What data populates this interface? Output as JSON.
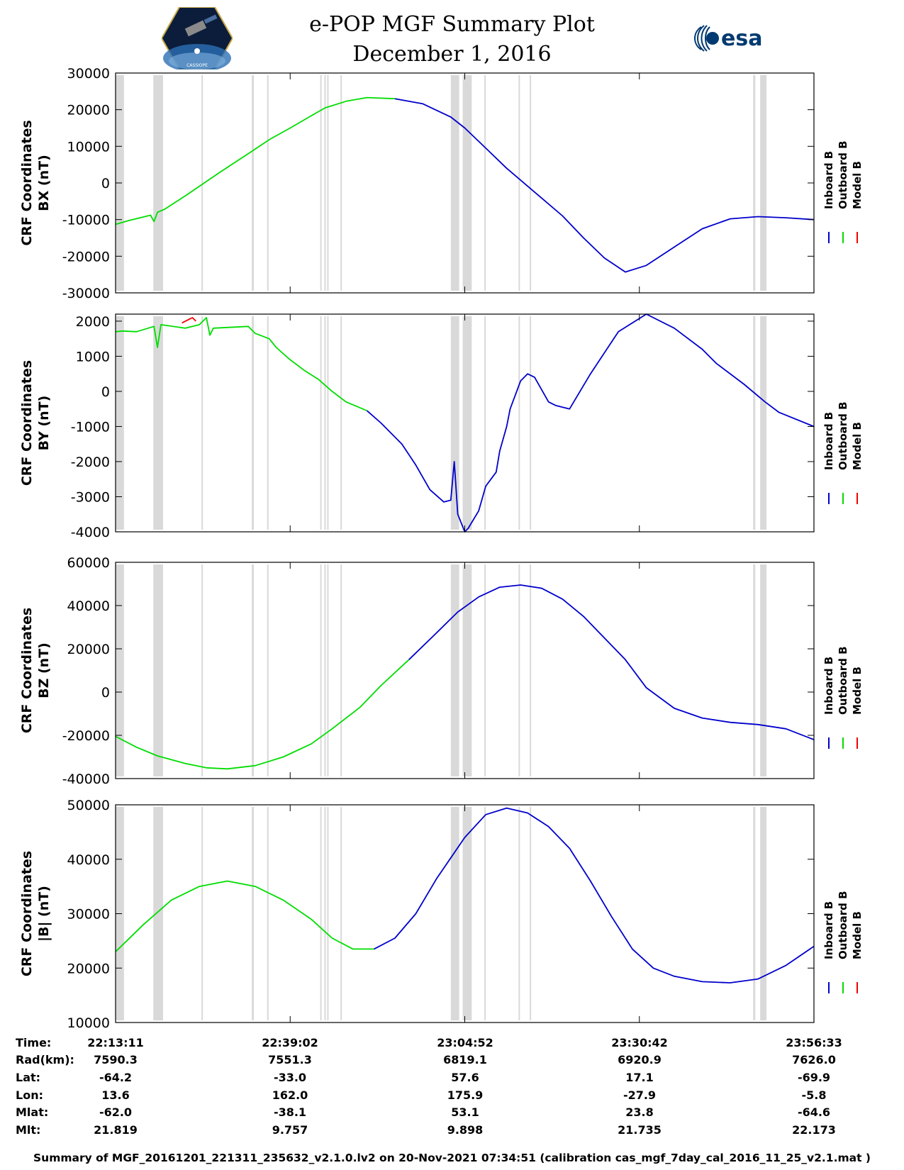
{
  "header": {
    "title": "e-POP MGF Summary Plot",
    "date": "December 1, 2016",
    "logo_left": "CASSIOPE",
    "logo_right": "esa"
  },
  "colors": {
    "inboard": "#0000cc",
    "outboard": "#00dd00",
    "model": "#ee0000",
    "gap_shade": "#d9d9d9",
    "axis": "#000000"
  },
  "legend": [
    "Inboard B",
    "Outboard B",
    "Model B"
  ],
  "chart_data": [
    {
      "type": "line",
      "ylabel_line1": "CRF Coordinates",
      "ylabel_line2": "BX (nT)",
      "ylim": [
        -30000,
        30000
      ],
      "yticks": [
        "30000",
        "20000",
        "10000",
        "0",
        "-10000",
        "-20000",
        "-30000"
      ],
      "ytick_values": [
        30000,
        20000,
        10000,
        0,
        -10000,
        -20000,
        -30000
      ],
      "series": [
        {
          "name": "Outboard B",
          "color_key": "outboard",
          "x": [
            0,
            0.02,
            0.05,
            0.055,
            0.06,
            0.07,
            0.1,
            0.15,
            0.19,
            0.22,
            0.25,
            0.28,
            0.3,
            0.33,
            0.36,
            0.4
          ],
          "y": [
            -11300,
            -10200,
            -8800,
            -10500,
            -8000,
            -7200,
            -3500,
            3000,
            8000,
            11800,
            15000,
            18300,
            20500,
            22300,
            23300,
            23000
          ]
        },
        {
          "name": "Inboard B",
          "color_key": "inboard",
          "x": [
            0.4,
            0.44,
            0.48,
            0.5,
            0.53,
            0.56,
            0.6,
            0.64,
            0.67,
            0.7,
            0.73,
            0.76,
            0.8,
            0.84,
            0.88,
            0.92,
            0.96,
            1.0
          ],
          "y": [
            23000,
            21600,
            18000,
            15000,
            9500,
            4000,
            -2500,
            -9000,
            -15000,
            -20500,
            -24300,
            -22500,
            -17500,
            -12500,
            -9800,
            -9200,
            -9500,
            -10000
          ]
        },
        {
          "name": "Model B",
          "color_key": "model",
          "x": [],
          "y": []
        }
      ]
    },
    {
      "type": "line",
      "ylabel_line1": "CRF Coordinates",
      "ylabel_line2": "BY (nT)",
      "ylim": [
        -4000,
        2200
      ],
      "yticks": [
        "2000",
        "1000",
        "0",
        "-1000",
        "-2000",
        "-3000",
        "-4000"
      ],
      "ytick_values": [
        2000,
        1000,
        0,
        -1000,
        -2000,
        -3000,
        -4000
      ],
      "series": [
        {
          "name": "Outboard B",
          "color_key": "outboard",
          "x": [
            0,
            0.01,
            0.03,
            0.055,
            0.06,
            0.065,
            0.1,
            0.12,
            0.13,
            0.135,
            0.14,
            0.19,
            0.2,
            0.22,
            0.23,
            0.25,
            0.27,
            0.29,
            0.31,
            0.33,
            0.36
          ],
          "y": [
            1700,
            1720,
            1700,
            1850,
            1250,
            1900,
            1800,
            1900,
            2100,
            1600,
            1800,
            1850,
            1650,
            1500,
            1250,
            900,
            600,
            350,
            0,
            -300,
            -550
          ]
        },
        {
          "name": "Model B",
          "color_key": "model",
          "x": [
            0.095,
            0.1,
            0.105,
            0.11,
            0.115
          ],
          "y": [
            1950,
            2000,
            2050,
            2100,
            2000
          ]
        },
        {
          "name": "Inboard B",
          "color_key": "inboard",
          "x": [
            0.36,
            0.38,
            0.41,
            0.43,
            0.45,
            0.47,
            0.48,
            0.485,
            0.49,
            0.5,
            0.505,
            0.52,
            0.53,
            0.545,
            0.55,
            0.56,
            0.565,
            0.58,
            0.59,
            0.6,
            0.62,
            0.63,
            0.65,
            0.68,
            0.72,
            0.76,
            0.8,
            0.84,
            0.86,
            0.9,
            0.93,
            0.95,
            1.0
          ],
          "y": [
            -550,
            -900,
            -1500,
            -2100,
            -2800,
            -3150,
            -3100,
            -2000,
            -3500,
            -4000,
            -3900,
            -3400,
            -2700,
            -2300,
            -1700,
            -1000,
            -500,
            300,
            500,
            400,
            -300,
            -400,
            -500,
            500,
            1700,
            2200,
            1800,
            1200,
            800,
            200,
            -300,
            -600,
            -1000
          ]
        }
      ]
    },
    {
      "type": "line",
      "ylabel_line1": "CRF Coordinates",
      "ylabel_line2": "BZ (nT)",
      "ylim": [
        -40000,
        60000
      ],
      "yticks": [
        "60000",
        "40000",
        "20000",
        "0",
        "-20000",
        "-40000"
      ],
      "ytick_values": [
        60000,
        40000,
        20000,
        0,
        -20000,
        -40000
      ],
      "series": [
        {
          "name": "Outboard B",
          "color_key": "outboard",
          "x": [
            0,
            0.03,
            0.06,
            0.1,
            0.13,
            0.16,
            0.2,
            0.24,
            0.28,
            0.31,
            0.35,
            0.38,
            0.42
          ],
          "y": [
            -20500,
            -25500,
            -29500,
            -33000,
            -35000,
            -35500,
            -34000,
            -30000,
            -24000,
            -17000,
            -7000,
            3000,
            15000
          ]
        },
        {
          "name": "Inboard B",
          "color_key": "inboard",
          "x": [
            0.42,
            0.46,
            0.49,
            0.52,
            0.55,
            0.58,
            0.61,
            0.64,
            0.67,
            0.7,
            0.73,
            0.76,
            0.8,
            0.84,
            0.88,
            0.92,
            0.96,
            1.0
          ],
          "y": [
            15000,
            27500,
            37000,
            44000,
            48500,
            49500,
            48000,
            43000,
            35000,
            25000,
            15000,
            2000,
            -7500,
            -12000,
            -14000,
            -15000,
            -17000,
            -22000
          ]
        },
        {
          "name": "Model B",
          "color_key": "model",
          "x": [],
          "y": []
        }
      ]
    },
    {
      "type": "line",
      "ylabel_line1": "CRF Coordinates",
      "ylabel_line2": "|B| (nT)",
      "ylim": [
        10000,
        50000
      ],
      "yticks": [
        "50000",
        "40000",
        "30000",
        "20000",
        "10000"
      ],
      "ytick_values": [
        50000,
        40000,
        30000,
        20000,
        10000
      ],
      "series": [
        {
          "name": "Outboard B",
          "color_key": "outboard",
          "x": [
            0,
            0.04,
            0.08,
            0.12,
            0.16,
            0.2,
            0.24,
            0.28,
            0.31,
            0.34,
            0.37
          ],
          "y": [
            23000,
            28000,
            32500,
            35000,
            36000,
            35000,
            32500,
            29000,
            25500,
            23500,
            23500
          ]
        },
        {
          "name": "Inboard B",
          "color_key": "inboard",
          "x": [
            0.37,
            0.4,
            0.43,
            0.46,
            0.5,
            0.53,
            0.56,
            0.59,
            0.62,
            0.65,
            0.68,
            0.71,
            0.74,
            0.77,
            0.8,
            0.84,
            0.88,
            0.92,
            0.96,
            1.0
          ],
          "y": [
            23500,
            25500,
            30000,
            36500,
            44000,
            48200,
            49400,
            48500,
            46000,
            42000,
            36000,
            29500,
            23500,
            20000,
            18500,
            17500,
            17300,
            18000,
            20500,
            24000
          ]
        },
        {
          "name": "Model B",
          "color_key": "model",
          "x": [],
          "y": []
        }
      ]
    }
  ],
  "xaxis": {
    "tick_positions": [
      0,
      0.25,
      0.5,
      0.75,
      1.0
    ]
  },
  "gaps": [
    {
      "start": 0.0,
      "end": 0.012
    },
    {
      "start": 0.054,
      "end": 0.068
    },
    {
      "start": 0.123,
      "end": 0.124
    },
    {
      "start": 0.195,
      "end": 0.198
    },
    {
      "start": 0.217,
      "end": 0.219
    },
    {
      "start": 0.293,
      "end": 0.295
    },
    {
      "start": 0.299,
      "end": 0.301
    },
    {
      "start": 0.303,
      "end": 0.305
    },
    {
      "start": 0.322,
      "end": 0.323
    },
    {
      "start": 0.48,
      "end": 0.492
    },
    {
      "start": 0.497,
      "end": 0.51
    },
    {
      "start": 0.528,
      "end": 0.529
    },
    {
      "start": 0.577,
      "end": 0.578
    },
    {
      "start": 0.593,
      "end": 0.594
    },
    {
      "start": 0.913,
      "end": 0.916
    },
    {
      "start": 0.923,
      "end": 0.932
    }
  ],
  "ephemeris": {
    "labels": [
      "Time:",
      "Rad(km):",
      "Lat:",
      "Lon:",
      "Mlat:",
      "Mlt:"
    ],
    "columns": [
      [
        "22:13:11",
        "7590.3",
        "-64.2",
        "13.6",
        "-62.0",
        "21.819"
      ],
      [
        "22:39:02",
        "7551.3",
        "-33.0",
        "162.0",
        "-38.1",
        "9.757"
      ],
      [
        "23:04:52",
        "6819.1",
        "57.6",
        "175.9",
        "53.1",
        "9.898"
      ],
      [
        "23:30:42",
        "6920.9",
        "17.1",
        "-27.9",
        "23.8",
        "21.735"
      ],
      [
        "23:56:33",
        "7626.0",
        "-69.9",
        "-5.8",
        "-64.6",
        "22.173"
      ]
    ]
  },
  "footer": "Summary of MGF_20161201_221311_235632_v2.1.0.lv2 on 20-Nov-2021 07:34:51 (calibration cas_mgf_7day_cal_2016_11_25_v2.1.mat )"
}
